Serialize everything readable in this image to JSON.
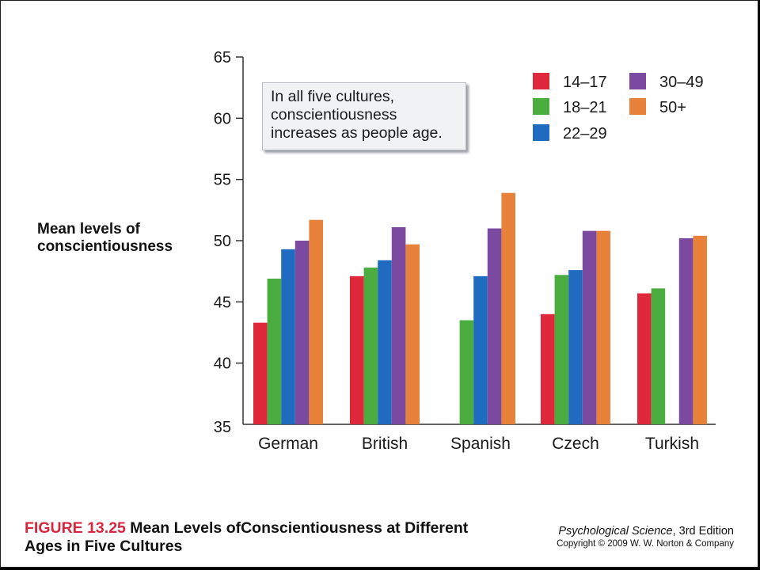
{
  "chart_data": {
    "type": "bar",
    "ylabel": "Mean levels of conscientiousness",
    "ylim": [
      35,
      65
    ],
    "yticks": [
      "35",
      "40",
      "45",
      "50",
      "55",
      "60",
      "65"
    ],
    "categories": [
      "German",
      "British",
      "Spanish",
      "Czech",
      "Turkish"
    ],
    "series": [
      {
        "name": "14–17",
        "color": "#e0283c",
        "values": [
          43.3,
          47.1,
          null,
          44.0,
          45.7
        ]
      },
      {
        "name": "18–21",
        "color": "#4bac3f",
        "values": [
          46.9,
          47.8,
          43.5,
          47.2,
          46.1
        ]
      },
      {
        "name": "22–29",
        "color": "#1e6bbf",
        "values": [
          49.3,
          48.4,
          47.1,
          47.6,
          null
        ]
      },
      {
        "name": "30–49",
        "color": "#7b4aa0",
        "values": [
          50.0,
          51.1,
          51.0,
          50.8,
          50.2
        ]
      },
      {
        "name": "50+",
        "color": "#e8813a",
        "values": [
          51.7,
          49.7,
          53.9,
          50.8,
          50.4
        ]
      }
    ],
    "legend_position": "top-right",
    "annotation": [
      "In all five cultures,",
      "conscientiousness",
      "increases as people age."
    ]
  },
  "ylabel_lines": [
    "Mean levels of",
    "conscientiousness"
  ],
  "caption": {
    "figure_label": "FIGURE 13.25",
    "text_line1": " Mean Levels ofConscientiousness at Different",
    "text_line2": "Ages in Five Cultures"
  },
  "credit": {
    "title": "Psychological Science",
    "edition": ", 3rd Edition",
    "copyright": "Copyright © 2009 W. W. Norton & Company"
  }
}
